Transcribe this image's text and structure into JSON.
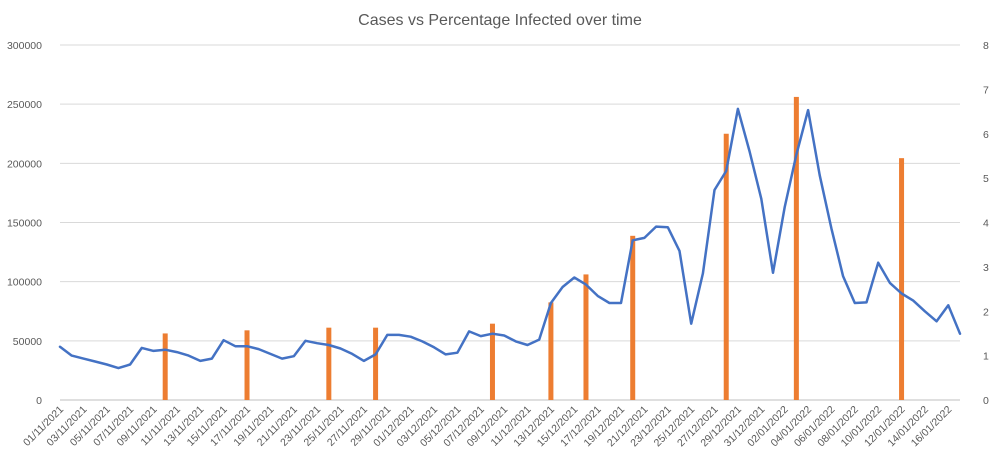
{
  "chart_data": {
    "type": "bar+line",
    "title": "Cases vs Percentage Infected over time",
    "xlabel": "",
    "ylabel": "",
    "y2label": "",
    "grid": true,
    "ylim": [
      0,
      300000
    ],
    "y_ticks": [
      0,
      50000,
      100000,
      150000,
      200000,
      250000,
      300000
    ],
    "y2lim": [
      0,
      8
    ],
    "y2_ticks": [
      0,
      1,
      2,
      3,
      4,
      5,
      6,
      7,
      8
    ],
    "x_tick_labels": [
      "01/11/2021",
      "03/11/2021",
      "05/11/2021",
      "07/11/2021",
      "09/11/2021",
      "11/11/2021",
      "13/11/2021",
      "15/11/2021",
      "17/11/2021",
      "19/11/2021",
      "21/11/2021",
      "23/11/2021",
      "25/11/2021",
      "27/11/2021",
      "29/11/2021",
      "01/12/2021",
      "03/12/2021",
      "05/12/2021",
      "07/12/2021",
      "09/12/2021",
      "11/12/2021",
      "13/12/2021",
      "15/12/2021",
      "17/12/2021",
      "19/12/2021",
      "21/12/2021",
      "23/12/2021",
      "25/12/2021",
      "27/12/2021",
      "29/12/2021",
      "31/12/2021",
      "02/01/2022",
      "04/01/2022",
      "06/01/2022",
      "08/01/2022",
      "10/01/2022",
      "12/01/2022",
      "14/01/2022",
      "16/01/2022"
    ],
    "bar_series": {
      "axis": "right",
      "x": [
        "10/11/2021",
        "17/11/2021",
        "24/11/2021",
        "28/11/2021",
        "08/12/2021",
        "13/12/2021",
        "16/12/2021",
        "20/12/2021",
        "28/12/2021",
        "03/01/2022",
        "12/01/2022"
      ],
      "values": [
        1.5,
        1.57,
        1.63,
        1.63,
        1.72,
        2.2,
        2.83,
        3.7,
        6.0,
        6.83,
        5.45
      ]
    },
    "line_series": {
      "axis": "left",
      "x_start": "01/11/2021",
      "x_end": "17/01/2022",
      "values": [
        45000,
        37500,
        35000,
        32500,
        30000,
        27000,
        30000,
        44000,
        41500,
        42500,
        40500,
        37500,
        33000,
        35000,
        50500,
        45500,
        45500,
        43000,
        39000,
        35000,
        37000,
        50000,
        48000,
        46500,
        43500,
        39000,
        33000,
        38500,
        55000,
        55000,
        53500,
        49500,
        44500,
        38500,
        40000,
        58000,
        54000,
        56000,
        54500,
        49500,
        46500,
        51000,
        82000,
        95500,
        103500,
        97500,
        88000,
        82000,
        82000,
        135000,
        137000,
        146500,
        146000,
        126000,
        64500,
        107000,
        177500,
        193500,
        246000,
        210000,
        170000,
        107500,
        163000,
        207500,
        245000,
        190000,
        145000,
        104500,
        82000,
        82500,
        116000,
        99000,
        90000,
        84000,
        75000,
        66500,
        80000,
        56000
      ]
    }
  }
}
